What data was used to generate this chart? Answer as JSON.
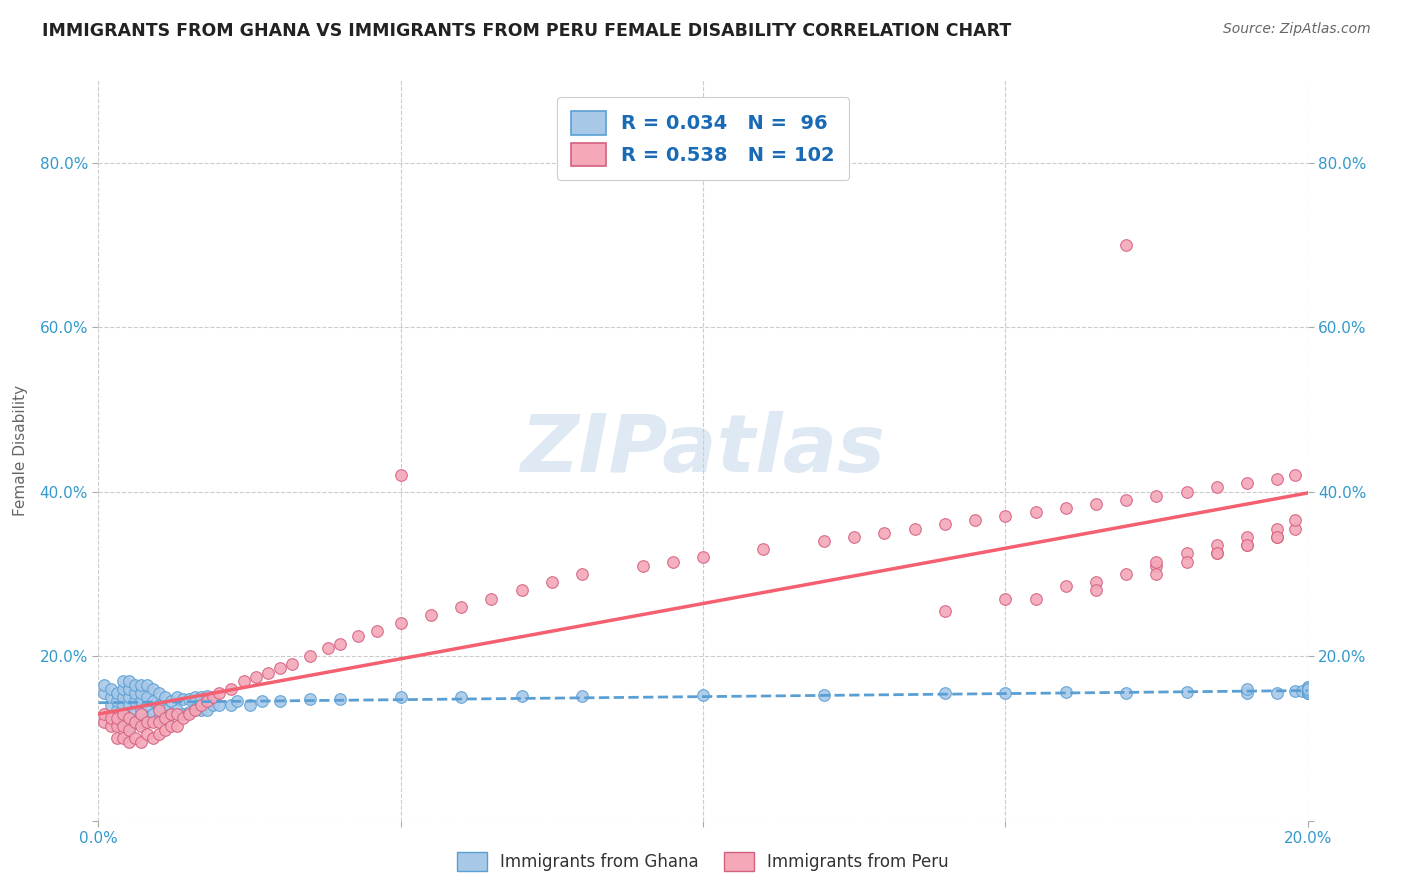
{
  "title": "IMMIGRANTS FROM GHANA VS IMMIGRANTS FROM PERU FEMALE DISABILITY CORRELATION CHART",
  "source": "Source: ZipAtlas.com",
  "ylabel": "Female Disability",
  "watermark": "ZIPatlas",
  "r_ghana": 0.034,
  "n_ghana": 96,
  "r_peru": 0.538,
  "n_peru": 102,
  "ghana_label": "Immigrants from Ghana",
  "peru_label": "Immigrants from Peru",
  "xlim": [
    0.0,
    0.2
  ],
  "ylim": [
    0.0,
    0.9
  ],
  "xticks": [
    0.0,
    0.05,
    0.1,
    0.15,
    0.2
  ],
  "yticks": [
    0.0,
    0.2,
    0.4,
    0.6,
    0.8
  ],
  "ghana_color": "#a8c8e8",
  "ghana_edge": "#5a9fd4",
  "peru_color": "#f4a8b8",
  "peru_edge": "#d46080",
  "ghana_line_color": "#5a9fd4",
  "peru_line_color": "#f46070",
  "background_color": "#ffffff",
  "grid_color": "#cccccc",
  "title_color": "#222222",
  "axis_label_color": "#666666",
  "tick_color": "#3399cc",
  "legend_text_color": "#1a6bb5",
  "ghana_scatter_x": [
    0.001,
    0.001,
    0.002,
    0.002,
    0.002,
    0.003,
    0.003,
    0.003,
    0.003,
    0.004,
    0.004,
    0.004,
    0.004,
    0.004,
    0.005,
    0.005,
    0.005,
    0.005,
    0.005,
    0.005,
    0.006,
    0.006,
    0.006,
    0.006,
    0.006,
    0.007,
    0.007,
    0.007,
    0.007,
    0.007,
    0.008,
    0.008,
    0.008,
    0.008,
    0.009,
    0.009,
    0.009,
    0.01,
    0.01,
    0.01,
    0.011,
    0.011,
    0.012,
    0.012,
    0.013,
    0.013,
    0.014,
    0.014,
    0.015,
    0.015,
    0.016,
    0.016,
    0.017,
    0.017,
    0.018,
    0.018,
    0.019,
    0.02,
    0.022,
    0.023,
    0.025,
    0.027,
    0.03,
    0.035,
    0.04,
    0.05,
    0.06,
    0.07,
    0.08,
    0.1,
    0.12,
    0.14,
    0.15,
    0.16,
    0.17,
    0.18,
    0.19,
    0.19,
    0.195,
    0.198,
    0.199,
    0.2,
    0.2,
    0.2,
    0.2,
    0.2,
    0.2,
    0.2,
    0.2,
    0.2,
    0.2,
    0.2,
    0.2,
    0.2,
    0.2,
    0.2
  ],
  "ghana_scatter_y": [
    0.155,
    0.165,
    0.14,
    0.15,
    0.16,
    0.12,
    0.135,
    0.145,
    0.155,
    0.125,
    0.14,
    0.15,
    0.16,
    0.17,
    0.115,
    0.125,
    0.14,
    0.15,
    0.16,
    0.17,
    0.12,
    0.135,
    0.145,
    0.155,
    0.165,
    0.12,
    0.135,
    0.145,
    0.155,
    0.165,
    0.125,
    0.14,
    0.15,
    0.165,
    0.13,
    0.145,
    0.16,
    0.125,
    0.14,
    0.155,
    0.135,
    0.15,
    0.13,
    0.145,
    0.135,
    0.15,
    0.13,
    0.148,
    0.132,
    0.148,
    0.135,
    0.15,
    0.135,
    0.15,
    0.135,
    0.152,
    0.14,
    0.14,
    0.14,
    0.145,
    0.14,
    0.145,
    0.145,
    0.148,
    0.148,
    0.15,
    0.15,
    0.152,
    0.152,
    0.153,
    0.153,
    0.155,
    0.155,
    0.156,
    0.155,
    0.156,
    0.155,
    0.16,
    0.155,
    0.158,
    0.158,
    0.158,
    0.16,
    0.155,
    0.158,
    0.162,
    0.155,
    0.158,
    0.16,
    0.155,
    0.158,
    0.16,
    0.162,
    0.155,
    0.158,
    0.16
  ],
  "peru_scatter_x": [
    0.001,
    0.001,
    0.002,
    0.002,
    0.003,
    0.003,
    0.003,
    0.004,
    0.004,
    0.004,
    0.005,
    0.005,
    0.005,
    0.006,
    0.006,
    0.007,
    0.007,
    0.007,
    0.008,
    0.008,
    0.009,
    0.009,
    0.01,
    0.01,
    0.01,
    0.011,
    0.011,
    0.012,
    0.012,
    0.013,
    0.013,
    0.014,
    0.015,
    0.016,
    0.017,
    0.018,
    0.019,
    0.02,
    0.022,
    0.024,
    0.026,
    0.028,
    0.03,
    0.032,
    0.035,
    0.038,
    0.04,
    0.043,
    0.046,
    0.05,
    0.055,
    0.06,
    0.065,
    0.07,
    0.075,
    0.08,
    0.09,
    0.095,
    0.1,
    0.11,
    0.12,
    0.125,
    0.13,
    0.135,
    0.14,
    0.145,
    0.15,
    0.155,
    0.16,
    0.165,
    0.17,
    0.175,
    0.18,
    0.185,
    0.19,
    0.195,
    0.198,
    0.17,
    0.15,
    0.16,
    0.14,
    0.155,
    0.165,
    0.175,
    0.185,
    0.19,
    0.195,
    0.198,
    0.175,
    0.18,
    0.185,
    0.19,
    0.195,
    0.198,
    0.165,
    0.175,
    0.18,
    0.185,
    0.19,
    0.195,
    0.05,
    0.17
  ],
  "peru_scatter_y": [
    0.12,
    0.13,
    0.115,
    0.125,
    0.1,
    0.115,
    0.125,
    0.1,
    0.115,
    0.13,
    0.095,
    0.11,
    0.125,
    0.1,
    0.12,
    0.095,
    0.115,
    0.13,
    0.105,
    0.12,
    0.1,
    0.12,
    0.105,
    0.12,
    0.135,
    0.11,
    0.125,
    0.115,
    0.13,
    0.115,
    0.13,
    0.125,
    0.13,
    0.135,
    0.14,
    0.145,
    0.15,
    0.155,
    0.16,
    0.17,
    0.175,
    0.18,
    0.185,
    0.19,
    0.2,
    0.21,
    0.215,
    0.225,
    0.23,
    0.24,
    0.25,
    0.26,
    0.27,
    0.28,
    0.29,
    0.3,
    0.31,
    0.315,
    0.32,
    0.33,
    0.34,
    0.345,
    0.35,
    0.355,
    0.36,
    0.365,
    0.37,
    0.375,
    0.38,
    0.385,
    0.39,
    0.395,
    0.4,
    0.405,
    0.41,
    0.415,
    0.42,
    0.3,
    0.27,
    0.285,
    0.255,
    0.27,
    0.29,
    0.31,
    0.325,
    0.335,
    0.345,
    0.355,
    0.315,
    0.325,
    0.335,
    0.345,
    0.355,
    0.365,
    0.28,
    0.3,
    0.315,
    0.325,
    0.335,
    0.345,
    0.42,
    0.7
  ]
}
